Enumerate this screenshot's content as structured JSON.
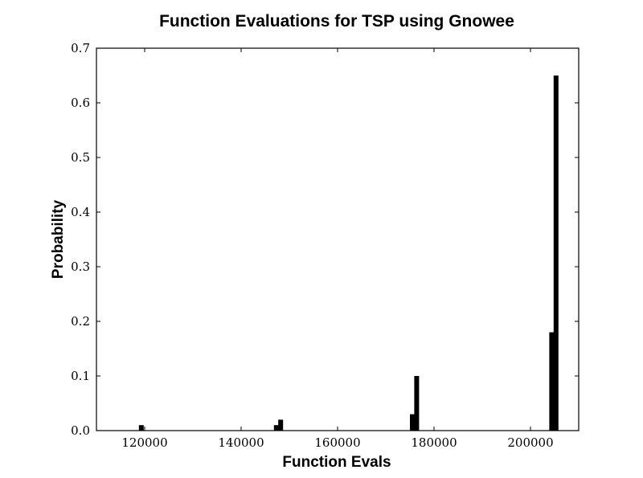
{
  "chart_data": {
    "type": "bar",
    "title": "Function Evaluations for TSP using Gnowee",
    "xlabel": "Function Evals",
    "ylabel": "Probability",
    "xlim": [
      110000,
      210000
    ],
    "ylim": [
      0,
      0.7
    ],
    "xticks": [
      120000,
      140000,
      160000,
      180000,
      200000
    ],
    "xtick_labels": [
      "120000",
      "140000",
      "160000",
      "180000",
      "200000"
    ],
    "yticks": [
      0.0,
      0.1,
      0.2,
      0.3,
      0.4,
      0.5,
      0.6,
      0.7
    ],
    "ytick_labels": [
      "0.0",
      "0.1",
      "0.2",
      "0.3",
      "0.4",
      "0.5",
      "0.6",
      "0.7"
    ],
    "bin_width": 1000,
    "bars": [
      {
        "x": 118800,
        "value": 0.01
      },
      {
        "x": 146800,
        "value": 0.01
      },
      {
        "x": 147700,
        "value": 0.02
      },
      {
        "x": 175000,
        "value": 0.03
      },
      {
        "x": 175900,
        "value": 0.1
      },
      {
        "x": 203900,
        "value": 0.18
      },
      {
        "x": 204800,
        "value": 0.65
      }
    ],
    "grid": false,
    "legend": "none",
    "bar_color": "#000000"
  }
}
